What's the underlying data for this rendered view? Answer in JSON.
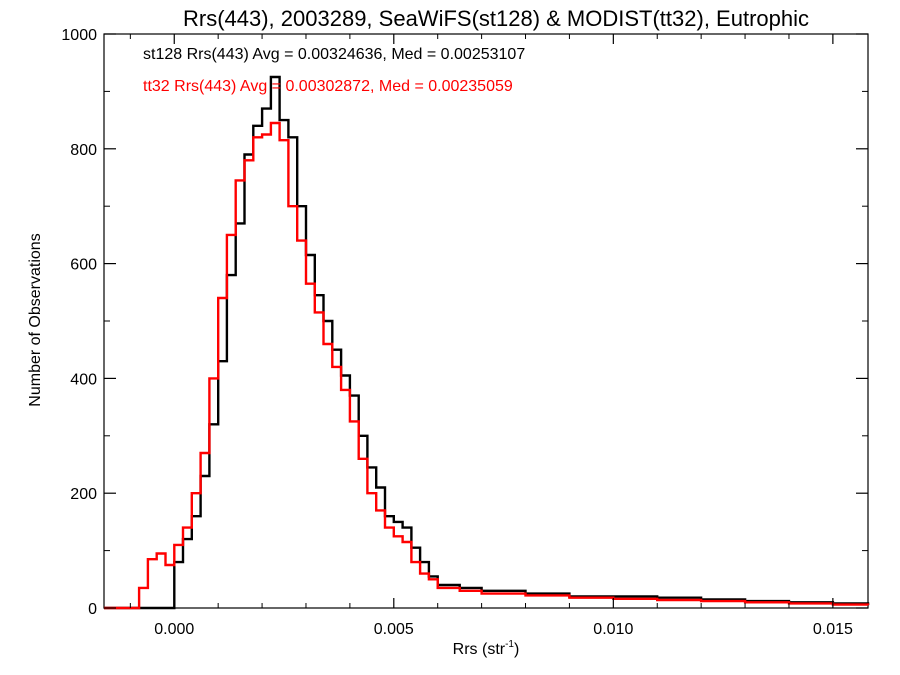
{
  "chart_data": {
    "type": "line",
    "title": "Rrs(443), 2003289, SeaWiFS(st128) & MODIST(tt32), Eutrophic",
    "xlabel_main": "Rrs (str",
    "xlabel_exp": "-1",
    "xlabel_close": ")",
    "ylabel": "Number of Observations",
    "xlim": [
      -0.0016,
      0.0158
    ],
    "ylim": [
      0,
      1000
    ],
    "xticks": [
      0.0,
      0.005,
      0.01,
      0.015
    ],
    "xtick_labels": [
      "0.000",
      "0.005",
      "0.010",
      "0.015"
    ],
    "yticks": [
      0,
      200,
      400,
      600,
      800,
      1000
    ],
    "ytick_labels": [
      "0",
      "200",
      "400",
      "600",
      "800",
      "1000"
    ],
    "grid": false,
    "annotations": [
      {
        "text": "st128 Rrs(443) Avg = 0.00324636, Med = 0.00253107",
        "color": "#000000"
      },
      {
        "text": "tt32 Rrs(443) Avg = 0.00302872, Med = 0.00235059",
        "color": "#ff0000"
      }
    ],
    "series": [
      {
        "color": "#000000",
        "x": [
          -0.0016,
          -0.0002,
          0.0,
          0.0002,
          0.0004,
          0.0006,
          0.0008,
          0.001,
          0.0012,
          0.0014,
          0.0016,
          0.0018,
          0.002,
          0.0022,
          0.0024,
          0.0026,
          0.0028,
          0.003,
          0.0032,
          0.0034,
          0.0036,
          0.0038,
          0.004,
          0.0042,
          0.0044,
          0.0046,
          0.0048,
          0.005,
          0.0052,
          0.0054,
          0.0056,
          0.0058,
          0.006,
          0.0065,
          0.007,
          0.008,
          0.009,
          0.01,
          0.011,
          0.012,
          0.013,
          0.014,
          0.015,
          0.0158
        ],
        "y": [
          0,
          0,
          80,
          120,
          160,
          230,
          320,
          430,
          580,
          670,
          790,
          840,
          870,
          925,
          850,
          820,
          700,
          615,
          545,
          500,
          450,
          405,
          370,
          300,
          245,
          210,
          160,
          150,
          140,
          105,
          80,
          55,
          40,
          35,
          30,
          25,
          20,
          20,
          18,
          15,
          12,
          10,
          8,
          5
        ]
      },
      {
        "color": "#ff0000",
        "x": [
          -0.0016,
          -0.001,
          -0.0008,
          -0.0006,
          -0.0004,
          -0.0002,
          0.0,
          0.0002,
          0.0004,
          0.0006,
          0.0008,
          0.001,
          0.0012,
          0.0014,
          0.0016,
          0.0018,
          0.002,
          0.0022,
          0.0024,
          0.0026,
          0.0028,
          0.003,
          0.0032,
          0.0034,
          0.0036,
          0.0038,
          0.004,
          0.0042,
          0.0044,
          0.0046,
          0.0048,
          0.005,
          0.0052,
          0.0054,
          0.0056,
          0.0058,
          0.006,
          0.0065,
          0.007,
          0.008,
          0.009,
          0.01,
          0.011,
          0.012,
          0.013,
          0.014,
          0.015,
          0.0158
        ],
        "y": [
          0,
          0,
          35,
          85,
          95,
          75,
          110,
          140,
          200,
          270,
          400,
          540,
          650,
          745,
          780,
          820,
          825,
          845,
          815,
          700,
          640,
          565,
          515,
          460,
          420,
          380,
          325,
          260,
          200,
          170,
          140,
          125,
          115,
          80,
          60,
          50,
          35,
          30,
          25,
          22,
          18,
          16,
          14,
          12,
          10,
          8,
          6,
          5
        ]
      }
    ]
  }
}
